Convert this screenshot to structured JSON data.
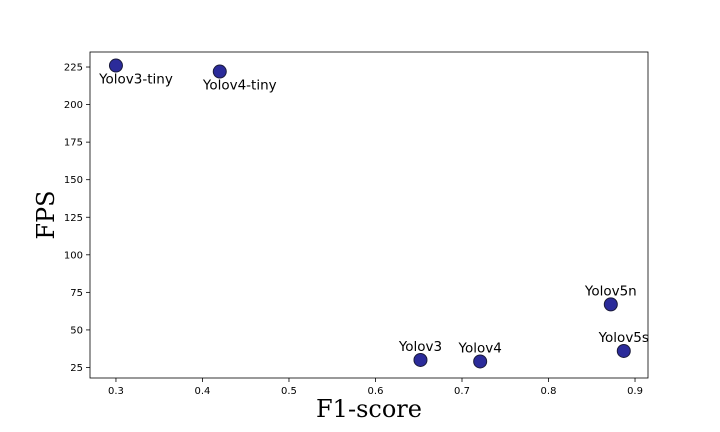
{
  "chart_data": {
    "type": "scatter",
    "xlabel": "F1-score",
    "ylabel": "FPS",
    "xlim": [
      0.27,
      0.915
    ],
    "ylim": [
      18,
      235
    ],
    "x_ticks": [
      0.3,
      0.4,
      0.5,
      0.6,
      0.7,
      0.8,
      0.9
    ],
    "y_ticks": [
      25,
      50,
      75,
      100,
      125,
      150,
      175,
      200,
      225
    ],
    "grid": false,
    "marker_color": "#2b2b9a",
    "marker_edge_color": "#1a1a3a",
    "points": [
      {
        "label": "Yolov3-tiny",
        "x": 0.3,
        "y": 226,
        "label_pos": "below"
      },
      {
        "label": "Yolov4-tiny",
        "x": 0.42,
        "y": 222,
        "label_pos": "below"
      },
      {
        "label": "Yolov3",
        "x": 0.652,
        "y": 30,
        "label_pos": "above"
      },
      {
        "label": "Yolov4",
        "x": 0.721,
        "y": 29,
        "label_pos": "above"
      },
      {
        "label": "Yolov5n",
        "x": 0.872,
        "y": 67,
        "label_pos": "above"
      },
      {
        "label": "Yolov5s",
        "x": 0.887,
        "y": 36,
        "label_pos": "above"
      }
    ]
  }
}
